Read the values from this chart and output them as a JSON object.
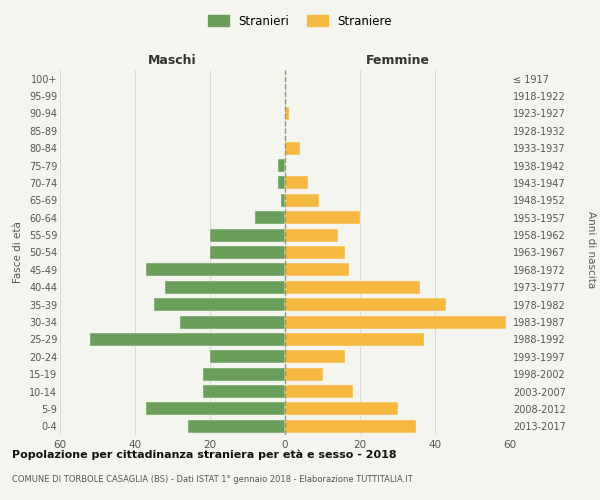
{
  "age_groups": [
    "0-4",
    "5-9",
    "10-14",
    "15-19",
    "20-24",
    "25-29",
    "30-34",
    "35-39",
    "40-44",
    "45-49",
    "50-54",
    "55-59",
    "60-64",
    "65-69",
    "70-74",
    "75-79",
    "80-84",
    "85-89",
    "90-94",
    "95-99",
    "100+"
  ],
  "birth_years": [
    "2013-2017",
    "2008-2012",
    "2003-2007",
    "1998-2002",
    "1993-1997",
    "1988-1992",
    "1983-1987",
    "1978-1982",
    "1973-1977",
    "1968-1972",
    "1963-1967",
    "1958-1962",
    "1953-1957",
    "1948-1952",
    "1943-1947",
    "1938-1942",
    "1933-1937",
    "1928-1932",
    "1923-1927",
    "1918-1922",
    "≤ 1917"
  ],
  "maschi": [
    26,
    37,
    22,
    22,
    20,
    52,
    28,
    35,
    32,
    37,
    20,
    20,
    8,
    1,
    2,
    2,
    0,
    0,
    0,
    0,
    0
  ],
  "femmine": [
    35,
    30,
    18,
    10,
    16,
    37,
    59,
    43,
    36,
    17,
    16,
    14,
    20,
    9,
    6,
    0,
    4,
    0,
    1,
    0,
    0
  ],
  "color_maschi": "#6a9e5b",
  "color_femmine": "#f5b942",
  "title_main": "Popolazione per cittadinanza straniera per età e sesso - 2018",
  "title_sub": "COMUNE DI TORBOLE CASAGLIA (BS) - Dati ISTAT 1° gennaio 2018 - Elaborazione TUTTITALIA.IT",
  "label_maschi": "Maschi",
  "label_femmine": "Femmine",
  "legend_stranieri": "Stranieri",
  "legend_straniere": "Straniere",
  "ylabel_left": "Fasce di età",
  "ylabel_right": "Anni di nascita",
  "xlim": 60,
  "background_color": "#f5f5f0",
  "grid_color": "#cccccc",
  "text_color": "#555555",
  "title_color": "#111111",
  "center_line_color": "#999966"
}
